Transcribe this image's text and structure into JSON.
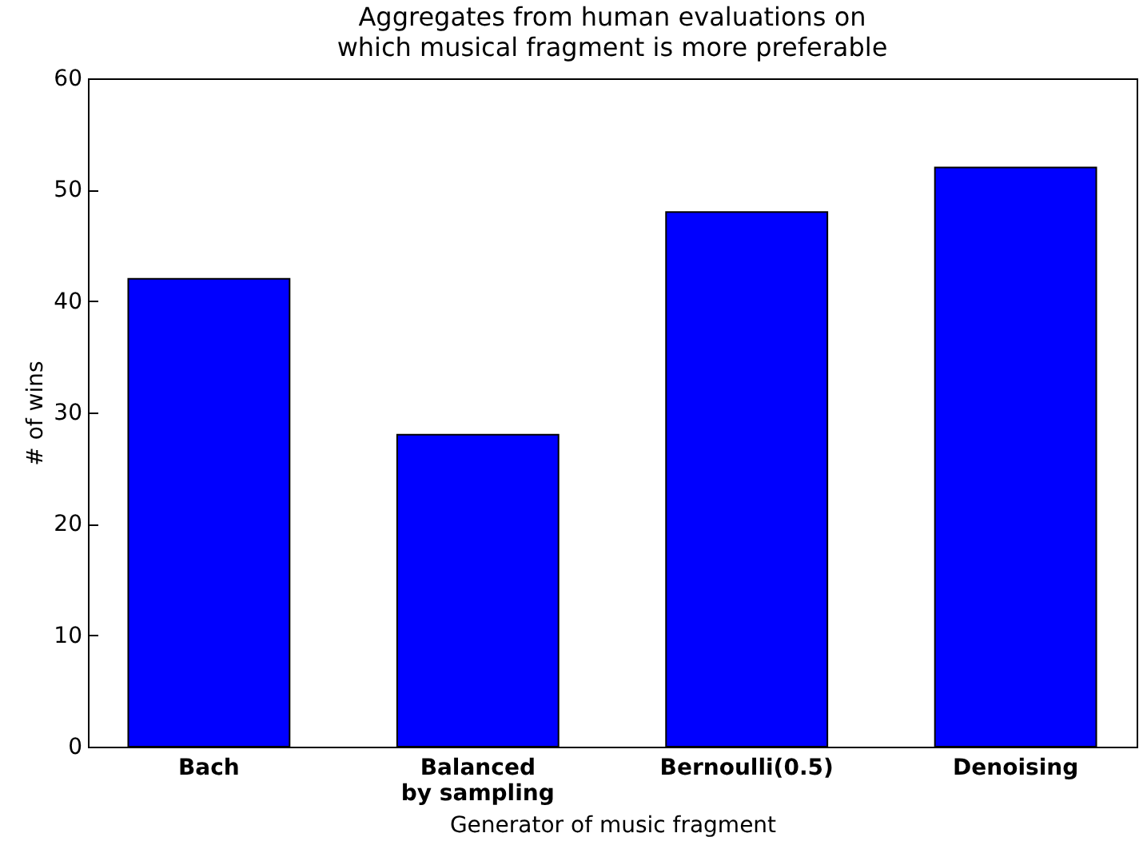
{
  "chart_data": {
    "type": "bar",
    "title": "Aggregates from human evaluations on\nwhich musical fragment is more preferable",
    "xlabel": "Generator of music fragment",
    "ylabel": "# of wins",
    "categories": [
      "Bach",
      "Balanced\nby sampling",
      "Bernoulli(0.5)",
      "Denoising"
    ],
    "values": [
      42,
      28,
      48,
      52
    ],
    "color": "#0000ff",
    "ylim": [
      0,
      60
    ],
    "yticks": [
      0,
      10,
      20,
      30,
      40,
      50,
      60
    ],
    "grid": false
  }
}
